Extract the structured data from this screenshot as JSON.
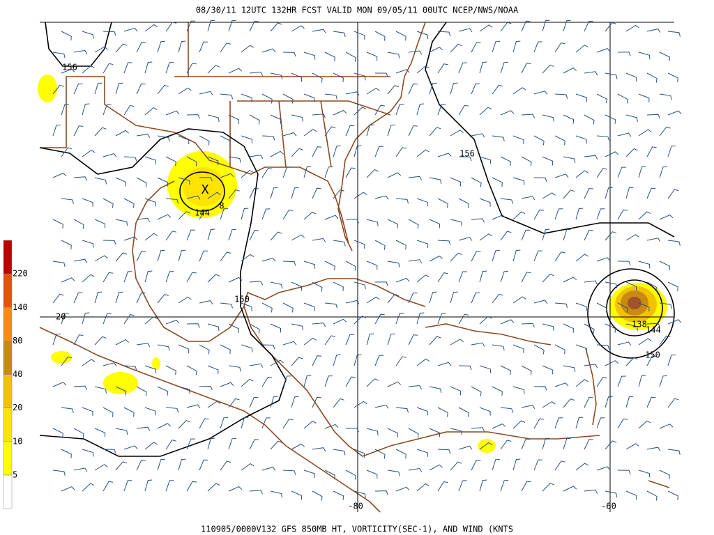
{
  "header": "08/30/11 12UTC  132HR  FCST VALID MON 09/05/11 00UTC  NCEP/NWS/NOAA",
  "footer": "110905/0000V132 GFS 850MB HT, VORTICITY(SEC-1), AND WIND (KNTS",
  "colorbar": {
    "labels": [
      "5",
      "10",
      "20",
      "40",
      "80",
      "140",
      "220"
    ],
    "colors": [
      "#ffffff",
      "#ffff00",
      "#ffe400",
      "#f2c200",
      "#c88a10",
      "#ff8a10",
      "#e85010",
      "#c00000"
    ]
  },
  "grid_labels": {
    "lat": [
      "20"
    ],
    "lon": [
      "-80",
      "-60"
    ]
  },
  "contour_labels": [
    "156",
    "156",
    "150",
    "150",
    "144",
    "144",
    "138",
    "8",
    "X"
  ]
}
